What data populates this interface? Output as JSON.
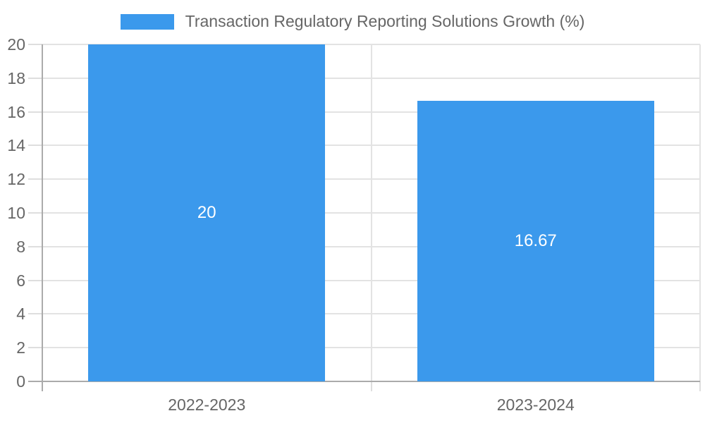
{
  "chart_data": {
    "type": "bar",
    "title": "Transaction Regulatory Reporting Solutions Growth (%)",
    "legend_position": "top",
    "categories": [
      "2022-2023",
      "2023-2024"
    ],
    "values": [
      20,
      16.67
    ],
    "bar_value_labels": [
      "20",
      "16.67"
    ],
    "xlabel": "",
    "ylabel": "",
    "ylim": [
      0,
      20
    ],
    "yticks": [
      0,
      2,
      4,
      6,
      8,
      10,
      12,
      14,
      16,
      18,
      20
    ],
    "grid": true,
    "colors": {
      "bar": "#3B99EC",
      "bar_label_text": "#FFFFFF",
      "tick_text": "#666666",
      "legend_text": "#666666",
      "gridline": "#E3E3E3",
      "tick_stub": "#DEDEDE",
      "axis_line": "#ABABAB"
    }
  }
}
